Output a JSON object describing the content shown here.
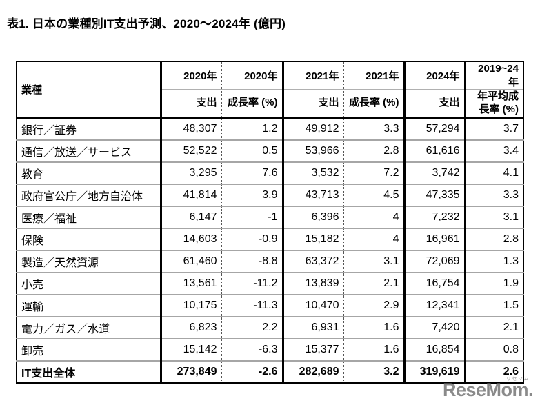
{
  "page_title": "表1. 日本の業種別IT支出予測、2020〜2024年 (億円)",
  "table": {
    "corner_header": "業種",
    "column_groups": [
      {
        "year": "2020年",
        "measure": "支出"
      },
      {
        "year": "2020年",
        "measure": "成長率 (%)"
      },
      {
        "year": "2021年",
        "measure": "支出"
      },
      {
        "year": "2021年",
        "measure": "成長率 (%)"
      },
      {
        "year": "2024年",
        "measure": "支出"
      },
      {
        "year": "2019~24年",
        "measure": "年平均成長率 (%)"
      }
    ],
    "rows": [
      {
        "industry": "銀行／証券",
        "values": [
          "48,307",
          "1.2",
          "49,912",
          "3.3",
          "57,294",
          "3.7"
        ],
        "bold": false
      },
      {
        "industry": "通信／放送／サービス",
        "values": [
          "52,522",
          "0.5",
          "53,966",
          "2.8",
          "61,616",
          "3.4"
        ],
        "bold": false
      },
      {
        "industry": "教育",
        "values": [
          "3,295",
          "7.6",
          "3,532",
          "7.2",
          "3,742",
          "4.1"
        ],
        "bold": false
      },
      {
        "industry": "政府官公庁／地方自治体",
        "values": [
          "41,814",
          "3.9",
          "43,713",
          "4.5",
          "47,335",
          "3.3"
        ],
        "bold": false
      },
      {
        "industry": "医療／福祉",
        "values": [
          "6,147",
          "-1",
          "6,396",
          "4",
          "7,232",
          "3.1"
        ],
        "bold": false
      },
      {
        "industry": "保険",
        "values": [
          "14,603",
          "-0.9",
          "15,182",
          "4",
          "16,961",
          "2.8"
        ],
        "bold": false
      },
      {
        "industry": "製造／天然資源",
        "values": [
          "61,460",
          "-8.8",
          "63,372",
          "3.1",
          "72,069",
          "1.3"
        ],
        "bold": false
      },
      {
        "industry": "小売",
        "values": [
          "13,561",
          "-11.2",
          "13,839",
          "2.1",
          "16,754",
          "1.9"
        ],
        "bold": false
      },
      {
        "industry": "運輸",
        "values": [
          "10,175",
          "-11.3",
          "10,470",
          "2.9",
          "12,341",
          "1.5"
        ],
        "bold": false
      },
      {
        "industry": "電力／ガス／水道",
        "values": [
          "6,823",
          "2.2",
          "6,931",
          "1.6",
          "7,420",
          "2.1"
        ],
        "bold": false
      },
      {
        "industry": "卸売",
        "values": [
          "15,142",
          "-6.3",
          "15,377",
          "1.6",
          "16,854",
          "0.8"
        ],
        "bold": false
      },
      {
        "industry": "IT支出全体",
        "values": [
          "273,849",
          "-2.6",
          "282,689",
          "3.2",
          "319,619",
          "2.6"
        ],
        "bold": true
      }
    ]
  },
  "watermark": {
    "logo_text": "ReseMom.",
    "logo_ruby": "リセマム",
    "logo_color": "#8a8a8a"
  },
  "chart_data": {
    "type": "table",
    "title": "表1. 日本の業種別IT支出予測、2020〜2024年 (億円)",
    "unit": "億円",
    "columns": [
      "業種",
      "2020年 支出",
      "2020年 成長率 (%)",
      "2021年 支出",
      "2021年 成長率 (%)",
      "2024年 支出",
      "2019~24年 年平均成長率 (%)"
    ],
    "rows": [
      [
        "銀行／証券",
        48307,
        1.2,
        49912,
        3.3,
        57294,
        3.7
      ],
      [
        "通信／放送／サービス",
        52522,
        0.5,
        53966,
        2.8,
        61616,
        3.4
      ],
      [
        "教育",
        3295,
        7.6,
        3532,
        7.2,
        3742,
        4.1
      ],
      [
        "政府官公庁／地方自治体",
        41814,
        3.9,
        43713,
        4.5,
        47335,
        3.3
      ],
      [
        "医療／福祉",
        6147,
        -1,
        6396,
        4,
        7232,
        3.1
      ],
      [
        "保険",
        14603,
        -0.9,
        15182,
        4,
        16961,
        2.8
      ],
      [
        "製造／天然資源",
        61460,
        -8.8,
        63372,
        3.1,
        72069,
        1.3
      ],
      [
        "小売",
        13561,
        -11.2,
        13839,
        2.1,
        16754,
        1.9
      ],
      [
        "運輸",
        10175,
        -11.3,
        10470,
        2.9,
        12341,
        1.5
      ],
      [
        "電力／ガス／水道",
        6823,
        2.2,
        6931,
        1.6,
        7420,
        2.1
      ],
      [
        "卸売",
        15142,
        -6.3,
        15377,
        1.6,
        16854,
        0.8
      ],
      [
        "IT支出全体",
        273849,
        -2.6,
        282689,
        3.2,
        319619,
        2.6
      ]
    ]
  }
}
